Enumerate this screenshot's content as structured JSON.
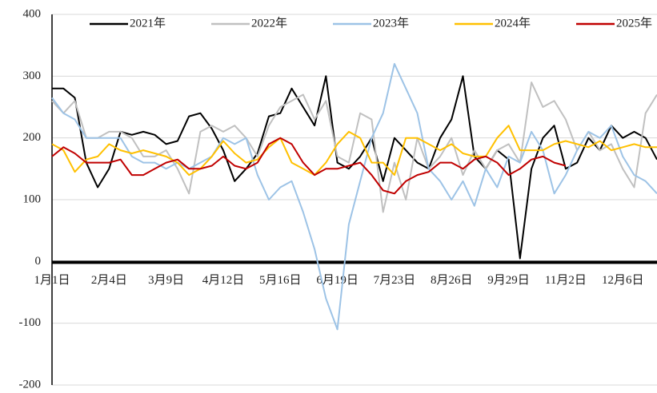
{
  "chart_data": {
    "type": "line",
    "categories": [
      "1月1日",
      null,
      null,
      null,
      null,
      "2月4日",
      null,
      null,
      null,
      null,
      "3月9日",
      null,
      null,
      null,
      null,
      "4月12日",
      null,
      null,
      null,
      null,
      "5月16日",
      null,
      null,
      null,
      null,
      "6月19日",
      null,
      null,
      null,
      null,
      "7月23日",
      null,
      null,
      null,
      null,
      "8月26日",
      null,
      null,
      null,
      null,
      "9月29日",
      null,
      null,
      null,
      null,
      "11月2日",
      null,
      null,
      null,
      null,
      "12月6日",
      null,
      null,
      null
    ],
    "series": [
      {
        "name": "2021年",
        "color": "#000000",
        "values": [
          280,
          280,
          265,
          160,
          120,
          150,
          210,
          205,
          210,
          205,
          190,
          195,
          235,
          240,
          215,
          180,
          130,
          150,
          175,
          235,
          240,
          280,
          250,
          220,
          300,
          160,
          150,
          170,
          200,
          130,
          200,
          180,
          160,
          150,
          200,
          230,
          300,
          170,
          150,
          180,
          165,
          5,
          150,
          200,
          220,
          150,
          160,
          200,
          180,
          220,
          200,
          210,
          200,
          165
        ]
      },
      {
        "name": "2022年",
        "color": "#c0c0c0",
        "values": [
          260,
          240,
          260,
          200,
          200,
          210,
          210,
          200,
          170,
          170,
          180,
          150,
          110,
          210,
          220,
          210,
          220,
          200,
          170,
          220,
          250,
          260,
          270,
          230,
          260,
          170,
          160,
          240,
          230,
          80,
          160,
          100,
          200,
          150,
          170,
          200,
          140,
          180,
          150,
          180,
          190,
          160,
          290,
          250,
          260,
          230,
          180,
          210,
          180,
          190,
          150,
          120,
          240,
          270
        ]
      },
      {
        "name": "2023年",
        "color": "#9dc3e6",
        "values": [
          265,
          240,
          230,
          200,
          200,
          200,
          200,
          170,
          160,
          160,
          150,
          160,
          150,
          160,
          170,
          200,
          190,
          200,
          140,
          100,
          120,
          130,
          80,
          20,
          -60,
          -110,
          60,
          130,
          200,
          240,
          320,
          280,
          240,
          150,
          130,
          100,
          130,
          90,
          150,
          120,
          170,
          160,
          210,
          180,
          110,
          140,
          180,
          210,
          200,
          220,
          170,
          140,
          130,
          110
        ]
      },
      {
        "name": "2024年",
        "color": "#ffc000",
        "values": [
          190,
          180,
          145,
          165,
          170,
          190,
          180,
          175,
          180,
          175,
          170,
          160,
          140,
          150,
          170,
          195,
          175,
          160,
          165,
          185,
          200,
          160,
          150,
          140,
          160,
          190,
          210,
          200,
          160,
          160,
          140,
          200,
          200,
          190,
          180,
          190,
          175,
          170,
          170,
          200,
          220,
          180,
          180,
          180,
          190,
          195,
          190,
          185,
          195,
          180,
          185,
          190,
          185,
          185
        ]
      },
      {
        "name": "2025年",
        "color": "#c00000",
        "values": [
          170,
          185,
          175,
          160,
          160,
          160,
          165,
          140,
          140,
          150,
          160,
          165,
          150,
          150,
          155,
          170,
          155,
          150,
          160,
          190,
          200,
          190,
          160,
          140,
          150,
          150,
          155,
          160,
          140,
          115,
          110,
          130,
          140,
          145,
          160,
          160,
          150,
          165,
          170,
          160,
          140,
          150,
          165,
          170,
          160,
          155,
          null,
          null,
          null,
          null,
          null,
          null,
          null,
          null
        ]
      }
    ],
    "ylim": [
      -200,
      400
    ],
    "yticks": [
      -200,
      -100,
      0,
      100,
      200,
      300,
      400
    ],
    "grid": true
  }
}
